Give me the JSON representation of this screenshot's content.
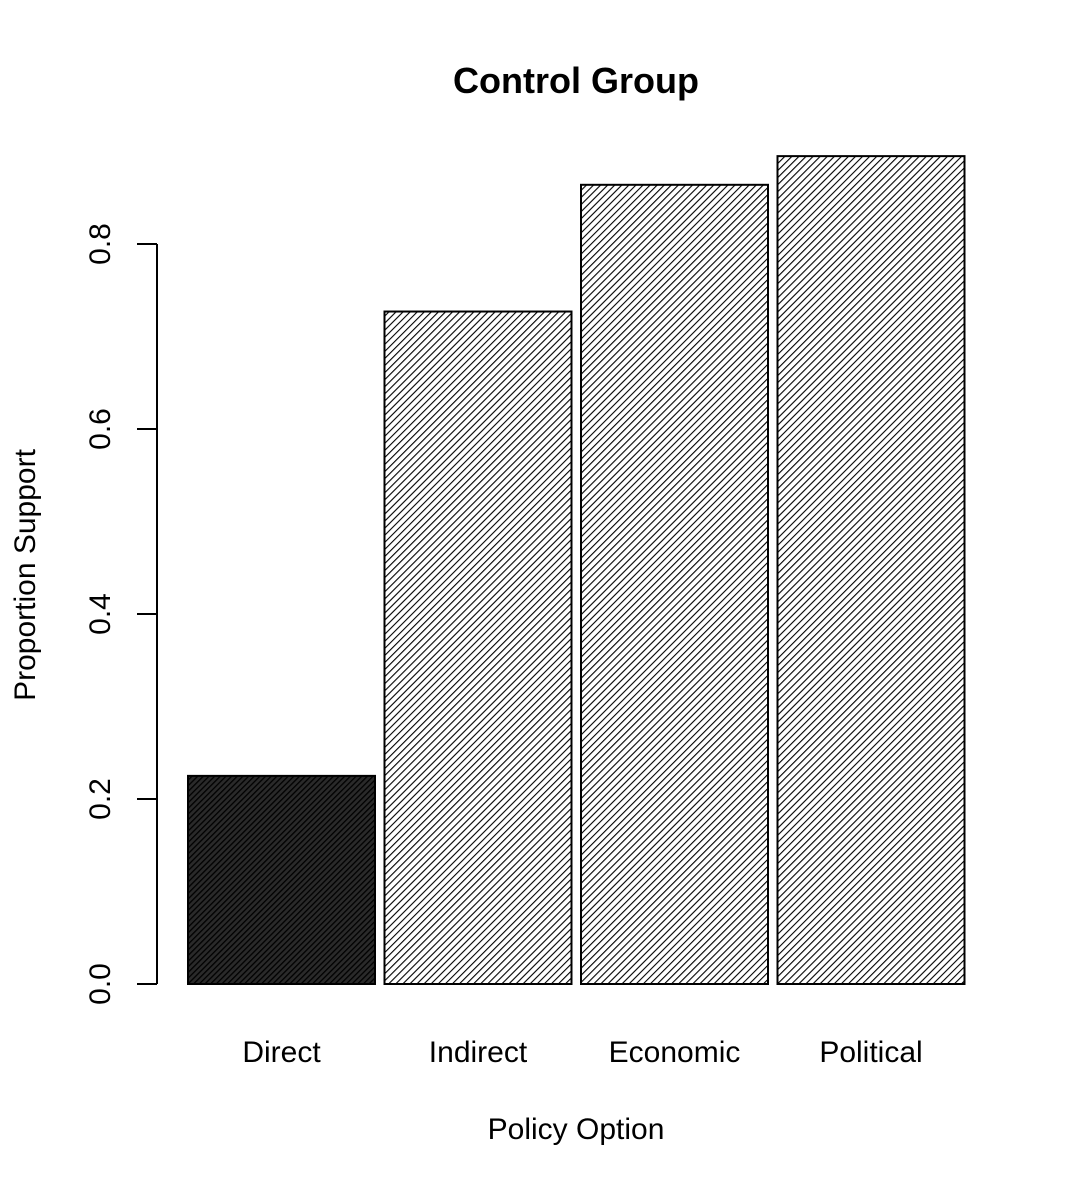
{
  "chart_data": {
    "type": "bar",
    "title": "Control Group",
    "xlabel": "Policy Option",
    "ylabel": "Proportion Support",
    "categories": [
      "Direct",
      "Indirect",
      "Economic",
      "Political"
    ],
    "values": [
      0.225,
      0.727,
      0.864,
      0.895
    ],
    "ylim": [
      0,
      0.8
    ],
    "yticks": [
      "0.0",
      "0.2",
      "0.4",
      "0.6",
      "0.8"
    ],
    "grid": false,
    "bar_fill": [
      "dense-hatch-dark",
      "hatch",
      "hatch",
      "hatch"
    ],
    "colors": {
      "stroke": "#000000",
      "background": "#ffffff"
    }
  }
}
